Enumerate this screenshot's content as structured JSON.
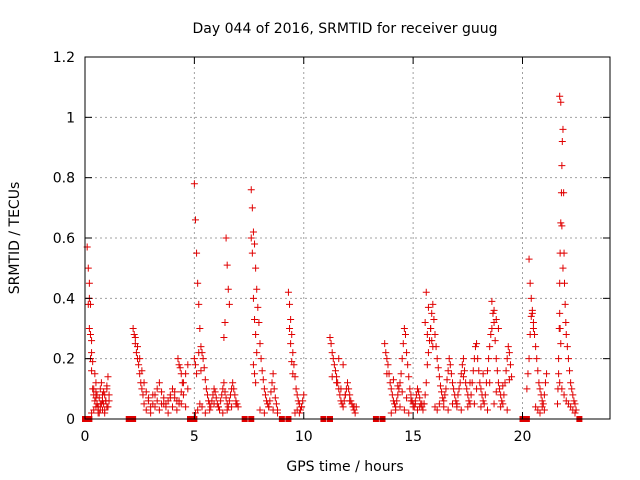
{
  "chart_data": {
    "type": "scatter",
    "title": "Day 044 of 2016, SRMTID for receiver guug",
    "xlabel": "GPS time / hours",
    "ylabel": "SRMTID / TECUs",
    "xlim": [
      0,
      24
    ],
    "ylim": [
      0,
      1.2
    ],
    "xticks": [
      0,
      5,
      10,
      15,
      20
    ],
    "yticks": [
      0,
      0.2,
      0.4,
      0.6,
      0.8,
      1,
      1.2
    ],
    "xtick_labels": [
      "0",
      "5",
      "10",
      "15",
      "20"
    ],
    "ytick_labels": [
      "0",
      "0.2",
      "0.4",
      "0.6",
      "0.8",
      "1",
      "1.2"
    ],
    "grid": true,
    "marker": "plus",
    "color": "#e00000",
    "series": [
      {
        "x": [
          0.1,
          0.15,
          0.2,
          0.25,
          0.3,
          0.35,
          0.4,
          0.45,
          0.5,
          0.55,
          0.6,
          0.65,
          0.7,
          0.75,
          0.8,
          0.85,
          0.9,
          0.95,
          1.0,
          1.05,
          1.1,
          0.2,
          0.25,
          0.3,
          0.35,
          0.45,
          0.5,
          0.55,
          0.6,
          0.65,
          0.75,
          0.85,
          0.95,
          1.05,
          0.15,
          0.2,
          0.25,
          0.3,
          0.4,
          0.5,
          0.6,
          0.7,
          0.8,
          0.9,
          1.0,
          0.3,
          0.4,
          0.5,
          0.6,
          0.7,
          0.8,
          0.9,
          1.0,
          1.1,
          2.2,
          2.25,
          2.3,
          2.35,
          2.4,
          2.45,
          2.5,
          2.55,
          2.6,
          2.65,
          2.7,
          2.3,
          2.4,
          2.5,
          2.6,
          2.7,
          2.8,
          2.9,
          3.0,
          3.1,
          3.2,
          3.3,
          3.4,
          3.5,
          3.6,
          3.7,
          3.8,
          3.9,
          4.0,
          4.1,
          4.2,
          4.3,
          4.4,
          4.5,
          4.6,
          4.7,
          2.8,
          3.0,
          3.2,
          3.4,
          3.6,
          3.8,
          4.0,
          4.2,
          4.4,
          4.6,
          2.9,
          3.1,
          3.3,
          3.5,
          3.7,
          3.9,
          4.1,
          4.3,
          4.5,
          4.7,
          4.25,
          4.3,
          4.35,
          4.4,
          4.45,
          5.0,
          5.05,
          5.1,
          5.15,
          5.2,
          5.25,
          5.3,
          5.35,
          5.4,
          5.45,
          5.5,
          5.55,
          5.6,
          5.65,
          5.7,
          5.75,
          5.8,
          5.85,
          5.9,
          5.95,
          6.0,
          6.05,
          6.1,
          6.15,
          6.2,
          6.25,
          6.3,
          6.35,
          6.4,
          6.45,
          6.5,
          6.55,
          6.6,
          6.65,
          6.7,
          6.75,
          6.8,
          6.85,
          6.9,
          6.95,
          7.0,
          5.0,
          5.05,
          5.1,
          5.2,
          5.3,
          5.05,
          5.15,
          5.25,
          5.35,
          5.5,
          5.7,
          5.9,
          6.1,
          6.3,
          6.5,
          6.7,
          6.9,
          6.45,
          6.5,
          6.55,
          6.6,
          6.4,
          6.35,
          7.6,
          7.65,
          7.7,
          7.75,
          7.8,
          7.85,
          7.9,
          7.95,
          8.0,
          8.05,
          8.1,
          8.15,
          8.2,
          8.25,
          8.3,
          8.35,
          8.4,
          8.45,
          8.5,
          8.55,
          8.6,
          8.65,
          8.7,
          8.75,
          8.8,
          7.6,
          7.65,
          7.7,
          7.75,
          7.8,
          7.85,
          7.7,
          7.75,
          7.8,
          8.0,
          8.2,
          8.4,
          8.6,
          8.8,
          9.3,
          9.35,
          9.4,
          9.45,
          9.5,
          9.55,
          9.6,
          9.65,
          9.7,
          9.75,
          9.8,
          9.85,
          9.9,
          9.95,
          10.0,
          9.35,
          9.4,
          9.45,
          9.5,
          9.6,
          9.7,
          9.8,
          9.9,
          11.2,
          11.25,
          11.3,
          11.35,
          11.4,
          11.45,
          11.5,
          11.55,
          11.6,
          11.65,
          11.7,
          11.75,
          11.8,
          11.85,
          11.9,
          11.95,
          12.0,
          12.05,
          12.1,
          12.15,
          12.2,
          12.25,
          12.3,
          12.35,
          12.4,
          11.3,
          11.5,
          11.7,
          11.9,
          12.1,
          12.3,
          11.6,
          11.8,
          13.7,
          13.75,
          13.8,
          13.85,
          13.9,
          13.95,
          14.0,
          14.05,
          14.1,
          14.15,
          14.2,
          14.25,
          14.3,
          14.35,
          14.4,
          14.45,
          14.5,
          14.55,
          14.6,
          14.65,
          14.7,
          14.75,
          14.8,
          14.85,
          14.9,
          14.95,
          15.0,
          15.05,
          15.1,
          15.15,
          15.2,
          15.25,
          15.3,
          15.35,
          15.4,
          15.45,
          15.5,
          14.0,
          14.2,
          14.4,
          14.6,
          14.8,
          15.0,
          15.2,
          15.4,
          13.8,
          14.1,
          14.3,
          14.5,
          14.7,
          14.9,
          15.1,
          15.3,
          15.5,
          15.55,
          15.6,
          15.65,
          15.7,
          15.75,
          15.8,
          15.85,
          15.9,
          15.95,
          16.0,
          16.05,
          16.1,
          16.15,
          16.2,
          16.25,
          16.3,
          16.35,
          16.4,
          16.45,
          16.5,
          16.55,
          16.6,
          16.65,
          16.7,
          16.75,
          16.8,
          16.85,
          16.9,
          16.95,
          17.0,
          15.6,
          15.7,
          15.8,
          15.9,
          16.0,
          16.1,
          16.2,
          16.4,
          16.6,
          16.8,
          17.0,
          15.55,
          15.65,
          15.85,
          17.0,
          17.05,
          17.1,
          17.15,
          17.2,
          17.25,
          17.3,
          17.35,
          17.4,
          17.45,
          17.5,
          17.55,
          17.6,
          17.65,
          17.7,
          17.75,
          17.8,
          17.85,
          17.9,
          17.95,
          18.0,
          18.05,
          18.1,
          18.15,
          18.2,
          18.25,
          18.3,
          18.35,
          18.4,
          18.45,
          18.5,
          18.55,
          18.6,
          18.65,
          18.7,
          18.75,
          18.8,
          18.85,
          18.9,
          18.95,
          19.0,
          19.05,
          19.1,
          19.15,
          19.2,
          19.25,
          19.3,
          19.35,
          19.4,
          19.45,
          19.5,
          17.2,
          17.5,
          17.8,
          18.1,
          18.4,
          18.7,
          19.0,
          19.3,
          18.6,
          18.7,
          18.8,
          18.9,
          17.3,
          17.6,
          17.9,
          18.2,
          18.5,
          18.8,
          19.1,
          19.4,
          20.2,
          20.25,
          20.3,
          20.35,
          20.4,
          20.45,
          20.5,
          20.55,
          20.6,
          20.65,
          20.7,
          20.75,
          20.8,
          20.85,
          20.9,
          20.95,
          21.0,
          21.05,
          21.1,
          20.3,
          20.35,
          20.4,
          20.45,
          20.5,
          20.6,
          20.7,
          20.8,
          20.9,
          21.0,
          21.6,
          21.62,
          21.65,
          21.68,
          21.7,
          21.72,
          21.75,
          21.78,
          21.8,
          21.82,
          21.85,
          21.88,
          21.9,
          21.92,
          21.95,
          21.98,
          22.0,
          22.05,
          22.1,
          22.15,
          22.2,
          22.25,
          22.3,
          22.35,
          22.4,
          22.45,
          21.7,
          21.75,
          21.8,
          21.85,
          21.7,
          21.72,
          21.75,
          21.65,
          21.7,
          21.8,
          21.9,
          22.0,
          22.1,
          22.2,
          22.3,
          22.4
        ],
        "y": [
          0.57,
          0.5,
          0.4,
          0.28,
          0.22,
          0.1,
          0.08,
          0.06,
          0.09,
          0.05,
          0.04,
          0.07,
          0.1,
          0.12,
          0.08,
          0.05,
          0.03,
          0.06,
          0.11,
          0.14,
          0.08,
          0.45,
          0.38,
          0.26,
          0.19,
          0.15,
          0.12,
          0.08,
          0.03,
          0.02,
          0.05,
          0.09,
          0.06,
          0.04,
          0.38,
          0.3,
          0.2,
          0.16,
          0.1,
          0.07,
          0.04,
          0.03,
          0.06,
          0.08,
          0.1,
          0.02,
          0.03,
          0.04,
          0.02,
          0.05,
          0.03,
          0.02,
          0.04,
          0.06,
          0.3,
          0.28,
          0.25,
          0.22,
          0.2,
          0.18,
          0.15,
          0.12,
          0.1,
          0.08,
          0.05,
          0.27,
          0.24,
          0.2,
          0.16,
          0.12,
          0.09,
          0.06,
          0.04,
          0.05,
          0.08,
          0.1,
          0.12,
          0.09,
          0.07,
          0.05,
          0.06,
          0.08,
          0.1,
          0.07,
          0.06,
          0.05,
          0.09,
          0.12,
          0.15,
          0.18,
          0.03,
          0.02,
          0.04,
          0.03,
          0.05,
          0.02,
          0.04,
          0.03,
          0.05,
          0.04,
          0.07,
          0.08,
          0.06,
          0.05,
          0.04,
          0.07,
          0.09,
          0.06,
          0.08,
          0.1,
          0.2,
          0.18,
          0.17,
          0.15,
          0.12,
          0.78,
          0.66,
          0.55,
          0.45,
          0.38,
          0.3,
          0.24,
          0.22,
          0.2,
          0.17,
          0.13,
          0.1,
          0.08,
          0.06,
          0.05,
          0.04,
          0.06,
          0.08,
          0.1,
          0.09,
          0.07,
          0.05,
          0.04,
          0.03,
          0.06,
          0.08,
          0.1,
          0.12,
          0.09,
          0.07,
          0.05,
          0.04,
          0.06,
          0.08,
          0.1,
          0.12,
          0.1,
          0.08,
          0.06,
          0.05,
          0.04,
          0.2,
          0.18,
          0.15,
          0.22,
          0.16,
          0.02,
          0.03,
          0.05,
          0.04,
          0.02,
          0.03,
          0.05,
          0.04,
          0.02,
          0.03,
          0.04,
          0.05,
          0.6,
          0.51,
          0.43,
          0.38,
          0.32,
          0.27,
          0.76,
          0.7,
          0.62,
          0.58,
          0.5,
          0.43,
          0.37,
          0.32,
          0.25,
          0.2,
          0.16,
          0.13,
          0.1,
          0.08,
          0.06,
          0.05,
          0.04,
          0.06,
          0.09,
          0.12,
          0.15,
          0.1,
          0.07,
          0.05,
          0.03,
          0.6,
          0.55,
          0.4,
          0.33,
          0.28,
          0.22,
          0.18,
          0.15,
          0.12,
          0.03,
          0.02,
          0.04,
          0.03,
          0.02,
          0.42,
          0.38,
          0.33,
          0.28,
          0.22,
          0.18,
          0.14,
          0.1,
          0.08,
          0.06,
          0.05,
          0.03,
          0.04,
          0.06,
          0.08,
          0.3,
          0.25,
          0.19,
          0.15,
          0.02,
          0.03,
          0.02,
          0.04,
          0.27,
          0.25,
          0.22,
          0.2,
          0.18,
          0.16,
          0.14,
          0.12,
          0.1,
          0.08,
          0.06,
          0.05,
          0.04,
          0.06,
          0.08,
          0.1,
          0.12,
          0.1,
          0.08,
          0.06,
          0.05,
          0.04,
          0.03,
          0.02,
          0.04,
          0.14,
          0.12,
          0.1,
          0.08,
          0.06,
          0.04,
          0.2,
          0.18,
          0.25,
          0.22,
          0.2,
          0.18,
          0.15,
          0.12,
          0.1,
          0.08,
          0.06,
          0.05,
          0.04,
          0.06,
          0.08,
          0.1,
          0.12,
          0.15,
          0.2,
          0.25,
          0.3,
          0.28,
          0.22,
          0.18,
          0.14,
          0.1,
          0.08,
          0.06,
          0.05,
          0.04,
          0.06,
          0.08,
          0.1,
          0.09,
          0.07,
          0.05,
          0.04,
          0.03,
          0.05,
          0.02,
          0.03,
          0.04,
          0.03,
          0.02,
          0.04,
          0.03,
          0.05,
          0.15,
          0.13,
          0.11,
          0.09,
          0.07,
          0.06,
          0.05,
          0.04,
          0.05,
          0.08,
          0.12,
          0.18,
          0.22,
          0.26,
          0.3,
          0.35,
          0.38,
          0.33,
          0.28,
          0.24,
          0.2,
          0.17,
          0.14,
          0.11,
          0.09,
          0.07,
          0.06,
          0.08,
          0.1,
          0.13,
          0.16,
          0.2,
          0.18,
          0.15,
          0.12,
          0.1,
          0.08,
          0.06,
          0.05,
          0.42,
          0.37,
          0.3,
          0.24,
          0.04,
          0.03,
          0.05,
          0.04,
          0.03,
          0.05,
          0.04,
          0.32,
          0.28,
          0.26,
          0.05,
          0.08,
          0.1,
          0.12,
          0.15,
          0.18,
          0.2,
          0.16,
          0.12,
          0.1,
          0.08,
          0.06,
          0.05,
          0.08,
          0.12,
          0.16,
          0.2,
          0.24,
          0.25,
          0.2,
          0.16,
          0.12,
          0.1,
          0.08,
          0.06,
          0.05,
          0.08,
          0.12,
          0.16,
          0.2,
          0.24,
          0.28,
          0.3,
          0.35,
          0.32,
          0.26,
          0.2,
          0.16,
          0.12,
          0.1,
          0.08,
          0.06,
          0.05,
          0.08,
          0.12,
          0.16,
          0.2,
          0.24,
          0.22,
          0.18,
          0.14,
          0.03,
          0.04,
          0.05,
          0.04,
          0.03,
          0.05,
          0.04,
          0.03,
          0.39,
          0.36,
          0.33,
          0.3,
          0.14,
          0.12,
          0.1,
          0.15,
          0.12,
          0.09,
          0.11,
          0.13,
          0.1,
          0.15,
          0.2,
          0.28,
          0.34,
          0.36,
          0.32,
          0.28,
          0.24,
          0.2,
          0.16,
          0.12,
          0.1,
          0.08,
          0.06,
          0.05,
          0.08,
          0.12,
          0.15,
          0.53,
          0.45,
          0.4,
          0.35,
          0.3,
          0.04,
          0.03,
          0.02,
          0.04,
          0.03,
          0.05,
          0.1,
          0.2,
          0.3,
          0.45,
          0.55,
          0.65,
          0.75,
          0.84,
          0.92,
          0.96,
          0.75,
          0.55,
          0.45,
          0.38,
          0.32,
          0.28,
          0.24,
          0.2,
          0.16,
          0.12,
          0.1,
          0.08,
          0.06,
          0.05,
          0.03,
          1.07,
          1.05,
          0.64,
          0.5,
          0.35,
          0.3,
          0.25,
          0.15,
          0.12,
          0.1,
          0.08,
          0.06,
          0.05,
          0.04,
          0.03,
          0.02
        ]
      }
    ],
    "zero_markers_x": [
      0.0,
      0.2,
      2.0,
      2.2,
      4.8,
      5.0,
      7.3,
      7.6,
      9.0,
      9.3,
      10.9,
      11.2,
      13.3,
      13.6,
      20.0,
      20.2,
      22.6
    ]
  }
}
